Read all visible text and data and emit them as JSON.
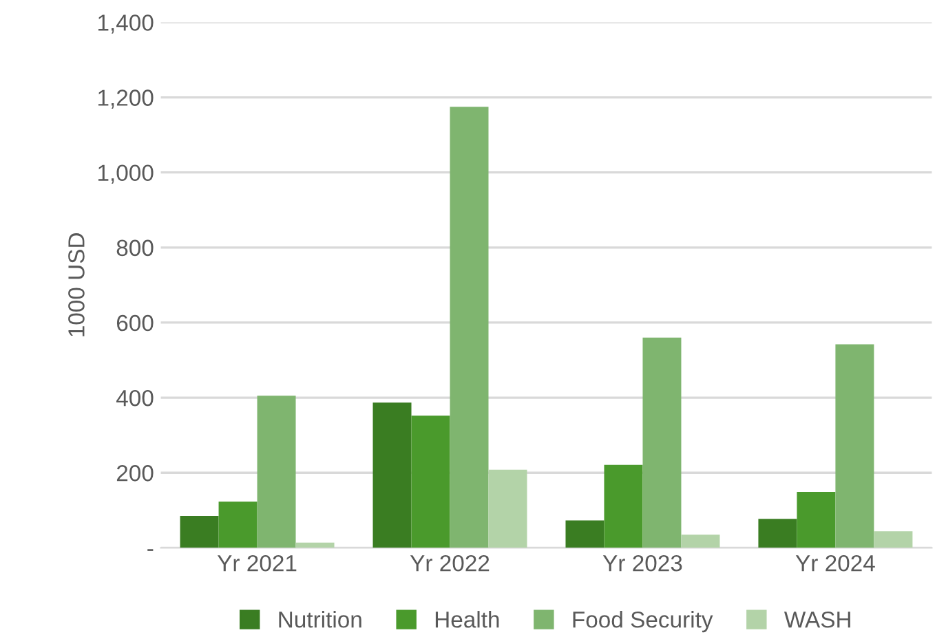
{
  "chart_data": {
    "type": "bar",
    "ylabel": "1000 USD",
    "categories": [
      "Yr 2021",
      "Yr 2022",
      "Yr 2023",
      "Yr 2024"
    ],
    "series": [
      {
        "name": "Nutrition",
        "color": "#3a7d22",
        "values": [
          85,
          387,
          73,
          77
        ]
      },
      {
        "name": "Health",
        "color": "#4a9a2c",
        "values": [
          123,
          352,
          221,
          149
        ]
      },
      {
        "name": "Food Security",
        "color": "#7fb56f",
        "values": [
          405,
          1175,
          560,
          542
        ]
      },
      {
        "name": "WASH",
        "color": "#b3d3a8",
        "values": [
          14,
          208,
          35,
          44
        ]
      }
    ],
    "ylim": [
      0,
      1400
    ],
    "yticks": [
      {
        "value": 0,
        "label": "-"
      },
      {
        "value": 200,
        "label": "200"
      },
      {
        "value": 400,
        "label": "400"
      },
      {
        "value": 600,
        "label": "600"
      },
      {
        "value": 800,
        "label": "800"
      },
      {
        "value": 1000,
        "label": "1,000"
      },
      {
        "value": 1200,
        "label": "1,200"
      },
      {
        "value": 1400,
        "label": "1,400"
      }
    ],
    "grid": "y",
    "legend": "bottom"
  }
}
